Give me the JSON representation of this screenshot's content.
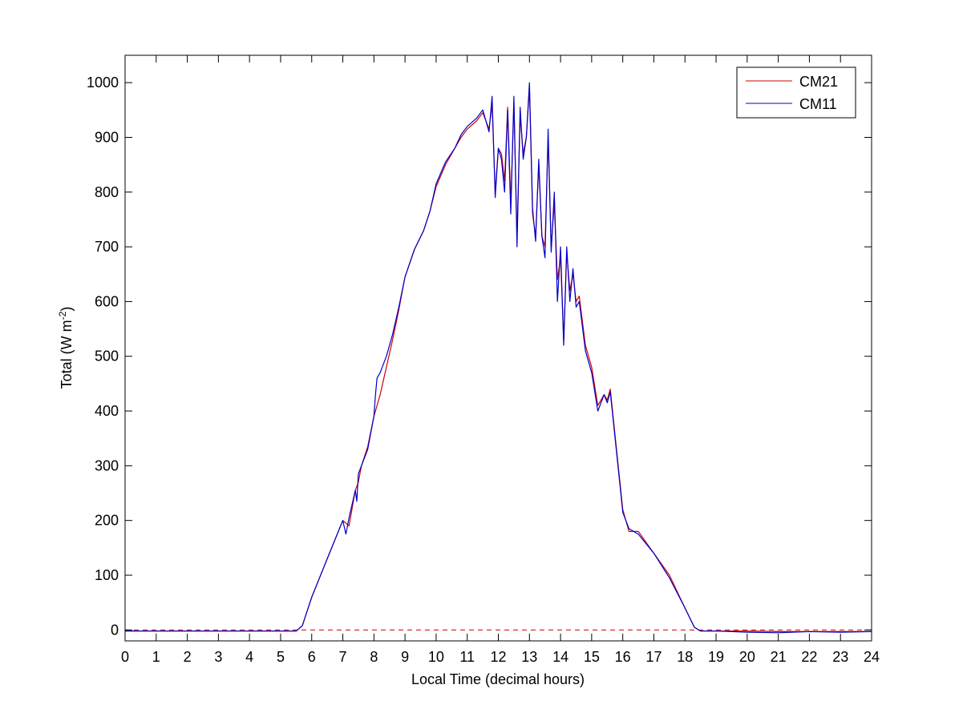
{
  "chart_data": {
    "type": "line",
    "title": "",
    "xlabel": "Local Time (decimal hours)",
    "ylabel": "Total (W m",
    "ylabel_sup": "-2",
    "ylabel_close": ")",
    "xlim": [
      0,
      24
    ],
    "ylim": [
      -20,
      1050
    ],
    "xticks": [
      0,
      1,
      2,
      3,
      4,
      5,
      6,
      7,
      8,
      9,
      10,
      11,
      12,
      13,
      14,
      15,
      16,
      17,
      18,
      19,
      20,
      21,
      22,
      23,
      24
    ],
    "yticks": [
      0,
      100,
      200,
      300,
      400,
      500,
      600,
      700,
      800,
      900,
      1000
    ],
    "grid": false,
    "legend_position": "top-right",
    "reference_line": {
      "y": 0,
      "style": "dashed",
      "color": "#cc0000"
    },
    "series": [
      {
        "name": "CM21",
        "color": "#cc0000",
        "x": [
          0,
          5.5,
          5.7,
          6.0,
          6.5,
          7.0,
          7.2,
          7.4,
          7.5,
          7.6,
          7.8,
          8.0,
          8.2,
          8.4,
          8.6,
          8.8,
          9.0,
          9.3,
          9.6,
          9.8,
          10.0,
          10.3,
          10.6,
          10.8,
          11.0,
          11.3,
          11.5,
          11.7,
          11.8,
          11.9,
          12.0,
          12.1,
          12.2,
          12.3,
          12.4,
          12.5,
          12.6,
          12.7,
          12.8,
          12.9,
          13.0,
          13.1,
          13.2,
          13.3,
          13.4,
          13.5,
          13.6,
          13.7,
          13.8,
          13.9,
          14.0,
          14.1,
          14.2,
          14.3,
          14.4,
          14.5,
          14.6,
          14.8,
          15.0,
          15.2,
          15.4,
          15.5,
          15.6,
          15.8,
          16.0,
          16.2,
          16.5,
          17.0,
          17.5,
          18.0,
          18.3,
          18.5,
          19.0,
          20.0,
          21.0,
          22.0,
          23.0,
          24.0
        ],
        "values": [
          -2,
          -2,
          8,
          60,
          130,
          200,
          190,
          255,
          270,
          300,
          335,
          390,
          430,
          480,
          530,
          585,
          645,
          695,
          730,
          765,
          810,
          850,
          880,
          900,
          915,
          930,
          945,
          915,
          960,
          800,
          880,
          870,
          820,
          955,
          780,
          960,
          720,
          940,
          870,
          900,
          990,
          760,
          720,
          850,
          720,
          700,
          900,
          700,
          780,
          640,
          680,
          530,
          690,
          620,
          650,
          600,
          610,
          520,
          480,
          410,
          430,
          420,
          440,
          330,
          220,
          180,
          180,
          140,
          100,
          40,
          5,
          -2,
          -2,
          -2,
          -3,
          -3,
          -3,
          -3
        ]
      },
      {
        "name": "CM11",
        "color": "#0000cc",
        "x": [
          0,
          5.5,
          5.7,
          6.0,
          6.5,
          7.0,
          7.1,
          7.2,
          7.4,
          7.45,
          7.5,
          7.6,
          7.8,
          8.0,
          8.05,
          8.1,
          8.2,
          8.4,
          8.6,
          8.8,
          9.0,
          9.3,
          9.6,
          9.8,
          10.0,
          10.3,
          10.6,
          10.8,
          11.0,
          11.3,
          11.5,
          11.7,
          11.8,
          11.9,
          12.0,
          12.1,
          12.2,
          12.3,
          12.4,
          12.5,
          12.6,
          12.7,
          12.8,
          12.9,
          13.0,
          13.1,
          13.2,
          13.3,
          13.4,
          13.5,
          13.6,
          13.7,
          13.8,
          13.9,
          14.0,
          14.1,
          14.2,
          14.3,
          14.4,
          14.5,
          14.6,
          14.8,
          15.0,
          15.2,
          15.4,
          15.5,
          15.6,
          15.8,
          16.0,
          16.2,
          16.5,
          17.0,
          17.5,
          18.0,
          18.3,
          18.5,
          19.0,
          20.0,
          21.0,
          22.0,
          23.0,
          24.0
        ],
        "values": [
          -2,
          -2,
          8,
          60,
          130,
          200,
          175,
          205,
          255,
          235,
          285,
          300,
          330,
          390,
          430,
          460,
          470,
          500,
          540,
          590,
          645,
          695,
          730,
          765,
          815,
          855,
          880,
          905,
          920,
          935,
          950,
          910,
          975,
          790,
          880,
          860,
          800,
          950,
          760,
          975,
          700,
          955,
          860,
          900,
          1000,
          770,
          710,
          860,
          720,
          680,
          915,
          690,
          800,
          600,
          700,
          520,
          700,
          600,
          660,
          590,
          600,
          510,
          470,
          400,
          430,
          415,
          435,
          325,
          215,
          185,
          175,
          140,
          95,
          40,
          5,
          -2,
          -2,
          -4,
          -5,
          -3,
          -4,
          -3
        ]
      }
    ]
  }
}
